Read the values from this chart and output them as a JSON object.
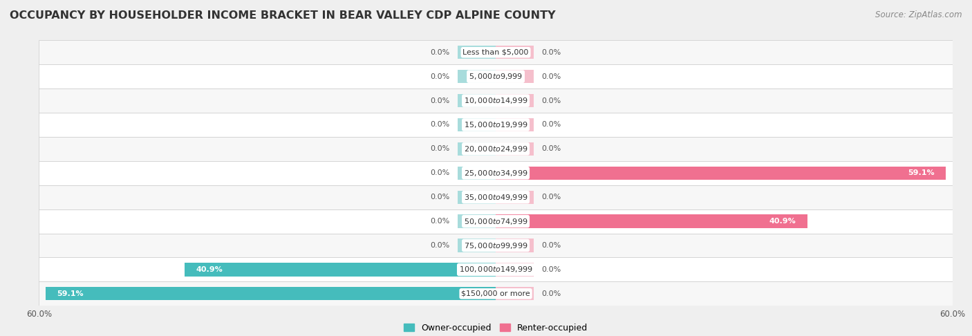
{
  "title": "OCCUPANCY BY HOUSEHOLDER INCOME BRACKET IN BEAR VALLEY CDP ALPINE COUNTY",
  "source": "Source: ZipAtlas.com",
  "categories": [
    "Less than $5,000",
    "$5,000 to $9,999",
    "$10,000 to $14,999",
    "$15,000 to $19,999",
    "$20,000 to $24,999",
    "$25,000 to $34,999",
    "$35,000 to $49,999",
    "$50,000 to $74,999",
    "$75,000 to $99,999",
    "$100,000 to $149,999",
    "$150,000 or more"
  ],
  "owner_values": [
    0.0,
    0.0,
    0.0,
    0.0,
    0.0,
    0.0,
    0.0,
    0.0,
    0.0,
    40.9,
    59.1
  ],
  "renter_values": [
    0.0,
    0.0,
    0.0,
    0.0,
    0.0,
    59.1,
    0.0,
    40.9,
    0.0,
    0.0,
    0.0
  ],
  "owner_color": "#45bcbc",
  "renter_color": "#f07090",
  "owner_color_faint": "#a8dcdc",
  "renter_color_faint": "#f5bfcc",
  "bg_color": "#efefef",
  "row_bg_even": "#f7f7f7",
  "row_bg_odd": "#ffffff",
  "axis_limit": 60.0,
  "legend_owner": "Owner-occupied",
  "legend_renter": "Renter-occupied",
  "title_fontsize": 11.5,
  "source_fontsize": 8.5,
  "label_fontsize": 8.0,
  "category_fontsize": 8.0,
  "axis_label_fontsize": 8.5,
  "stub_size": 5.0
}
